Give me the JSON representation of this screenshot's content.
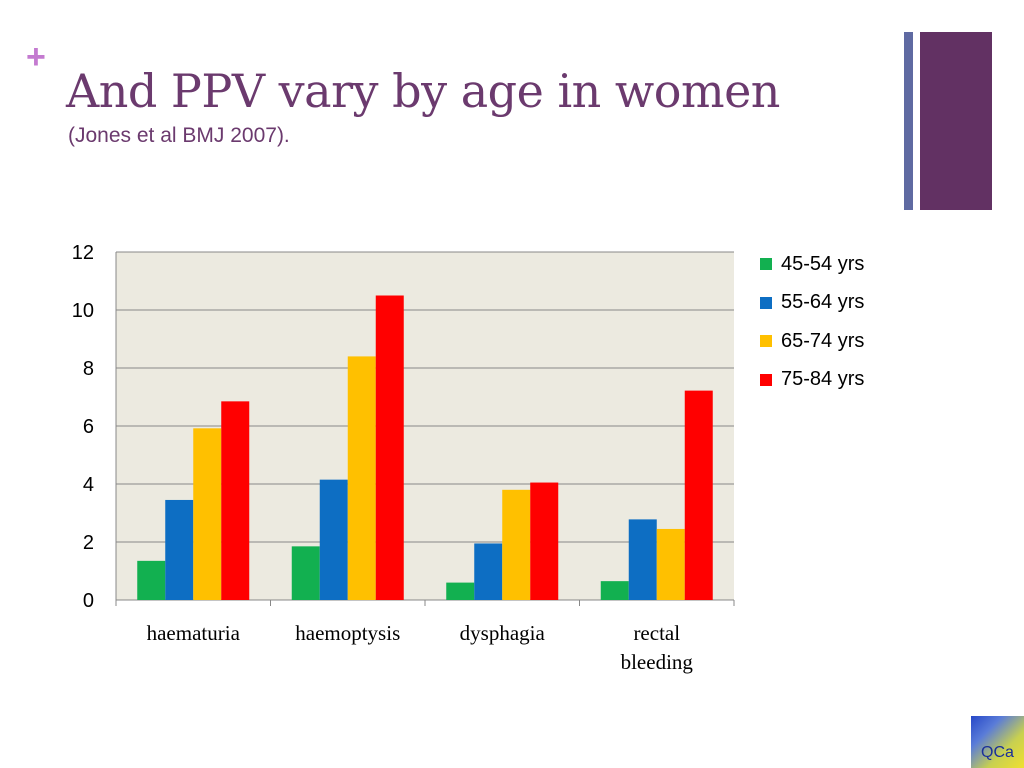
{
  "slide": {
    "title": "And PPV vary by age in women",
    "subtitle": "(Jones et al BMJ 2007).",
    "plus_icon": "plus-icon",
    "logo_text": "QCa"
  },
  "colors": {
    "title": "#6b3a6e",
    "plus": "#c47ad0",
    "plot_bg": "#eceae0",
    "deco_thin": "#5f6aa2",
    "deco_thick": "#623163"
  },
  "chart_data": {
    "type": "bar",
    "title": "",
    "xlabel": "",
    "ylabel": "",
    "categories": [
      "haematuria",
      "haemoptysis",
      "dysphagia",
      "rectal bleeding"
    ],
    "category_lines": [
      [
        "haematuria"
      ],
      [
        "haemoptysis"
      ],
      [
        "dysphagia"
      ],
      [
        "rectal",
        "bleeding"
      ]
    ],
    "series": [
      {
        "name": "45-54 yrs",
        "color": "#12b050",
        "values": [
          1.35,
          1.85,
          0.6,
          0.65
        ]
      },
      {
        "name": "55-64 yrs",
        "color": "#0d6ec3",
        "values": [
          3.45,
          4.15,
          1.95,
          2.78
        ]
      },
      {
        "name": "65-74 yrs",
        "color": "#ffc000",
        "values": [
          5.92,
          8.4,
          3.8,
          2.45
        ]
      },
      {
        "name": "75-84 yrs",
        "color": "#ff0000",
        "values": [
          6.85,
          10.5,
          4.05,
          7.22
        ]
      }
    ],
    "ylim": [
      0,
      12
    ],
    "yticks": [
      0,
      2,
      4,
      6,
      8,
      10,
      12
    ],
    "grid": true,
    "legend_position": "right"
  }
}
